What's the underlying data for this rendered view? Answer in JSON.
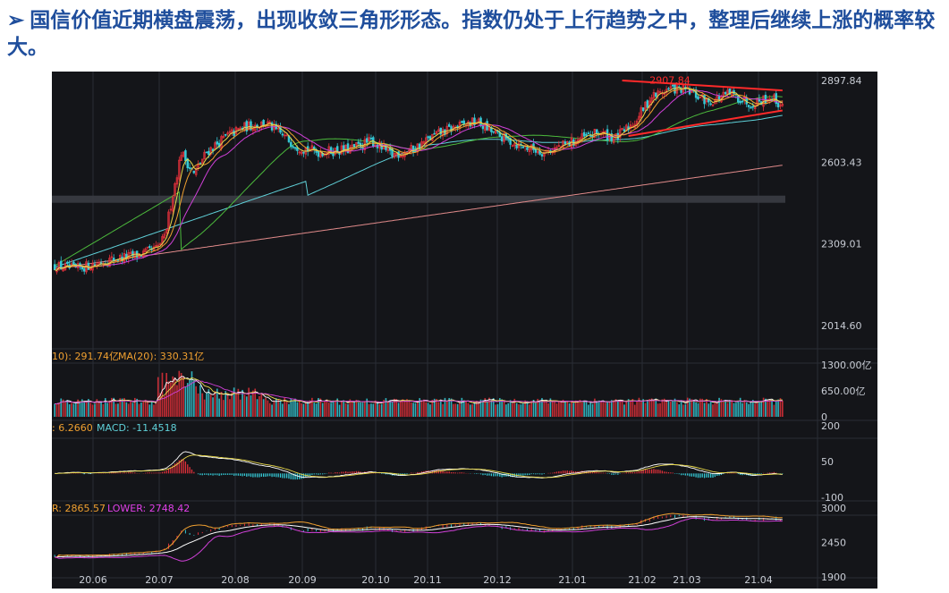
{
  "heading": {
    "bullet": "➢",
    "text": "国信价值近期横盘震荡，出现收敛三角形形态。指数仍处于上行趋势之中，整理后继续上涨的概率较大。"
  },
  "colors": {
    "heading": "#1f4e9c",
    "background": "#141519",
    "up": "#e0303a",
    "down": "#35c9d6",
    "ma_yellow": "#e8d84a",
    "ma_orange": "#f0a030",
    "ma_magenta": "#d040d8",
    "ma_green": "#4cba3c",
    "ma_cyan": "#5fd0d8",
    "ma_pink": "#e08a8a",
    "trendline": "#ff2a2a",
    "label_orange": "#f0a030",
    "label_cyan": "#5fd0d8",
    "label_magenta": "#e040e8"
  },
  "chart_data": [
    {
      "type": "candlestick",
      "panel": "price",
      "ylim": [
        2014.6,
        2897.84
      ],
      "y_ticks": [
        "2897.84",
        "2603.43",
        "2309.01",
        "2014.60"
      ],
      "x_ticks": [
        "20.06",
        "20.07",
        "20.08",
        "20.09",
        "20.10",
        "20.11",
        "20.12",
        "21.01",
        "21.02",
        "21.03",
        "21.04"
      ],
      "annotation": "2907.84",
      "path_keypoints": [
        [
          0,
          2230
        ],
        [
          10,
          2218
        ],
        [
          25,
          2250
        ],
        [
          40,
          2270
        ],
        [
          48,
          2290
        ],
        [
          52,
          2330
        ],
        [
          55,
          2450
        ],
        [
          60,
          2640
        ],
        [
          66,
          2560
        ],
        [
          72,
          2640
        ],
        [
          82,
          2700
        ],
        [
          90,
          2730
        ],
        [
          100,
          2745
        ],
        [
          108,
          2700
        ],
        [
          115,
          2660
        ],
        [
          125,
          2640
        ],
        [
          140,
          2650
        ],
        [
          150,
          2680
        ],
        [
          160,
          2630
        ],
        [
          170,
          2650
        ],
        [
          180,
          2700
        ],
        [
          190,
          2730
        ],
        [
          200,
          2750
        ],
        [
          210,
          2700
        ],
        [
          220,
          2665
        ],
        [
          232,
          2640
        ],
        [
          240,
          2660
        ],
        [
          250,
          2690
        ],
        [
          258,
          2710
        ],
        [
          266,
          2690
        ],
        [
          275,
          2750
        ],
        [
          283,
          2840
        ],
        [
          292,
          2870
        ],
        [
          300,
          2860
        ],
        [
          310,
          2820
        ],
        [
          320,
          2850
        ],
        [
          330,
          2815
        ],
        [
          340,
          2840
        ],
        [
          345,
          2800
        ]
      ],
      "moving_averages": [
        "MA5",
        "MA10",
        "MA20",
        "MA60",
        "MA120",
        "MA250"
      ],
      "trendlines": [
        {
          "from": [
            269,
            2898
          ],
          "to": [
            345,
            2862
          ]
        },
        {
          "from": [
            272,
            2698
          ],
          "to": [
            345,
            2790
          ]
        }
      ]
    },
    {
      "type": "bar",
      "panel": "volume",
      "label_left": "10): 291.74亿",
      "label_ma20": "MA(20): 330.31亿",
      "ylim": [
        0,
        1300
      ],
      "y_ticks": [
        "1300.00亿",
        "650.00亿",
        "0"
      ]
    },
    {
      "type": "bar",
      "panel": "macd",
      "label_left": ": 6.2660",
      "label_macd": "MACD: -11.4518",
      "ylim": [
        -100,
        200
      ],
      "y_ticks": [
        "200",
        "50",
        "-100"
      ]
    },
    {
      "type": "line",
      "panel": "boll",
      "label_left": "R: 2865.57",
      "label_lower": "LOWER: 2748.42",
      "ylim": [
        1900,
        3000
      ],
      "y_ticks": [
        "3000",
        "2450",
        "1900"
      ]
    }
  ]
}
